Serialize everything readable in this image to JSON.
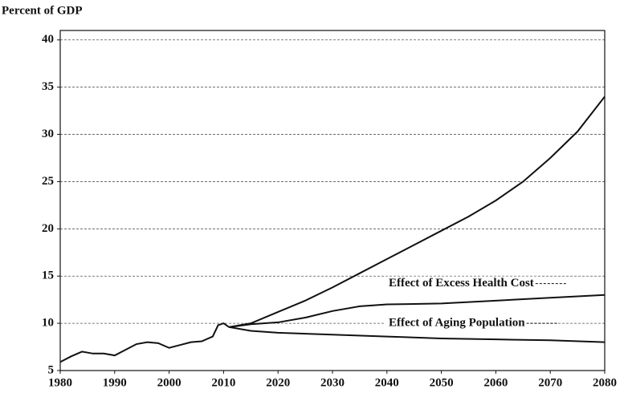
{
  "chart_data": {
    "type": "line",
    "y_label": "Percent of GDP",
    "xlim": [
      1980,
      2080
    ],
    "xticks": [
      1980,
      1990,
      2000,
      2010,
      2020,
      2030,
      2040,
      2050,
      2060,
      2070,
      2080
    ],
    "ylim": [
      5,
      41
    ],
    "yticks": [
      5,
      10,
      15,
      20,
      25,
      30,
      35,
      40
    ],
    "grid": true,
    "series": [
      {
        "color": "#111111",
        "x": [
          1980,
          1982,
          1984,
          1986,
          1988,
          1990,
          1992,
          1994,
          1996,
          1998,
          2000,
          2002,
          2004,
          2006,
          2008,
          2009,
          2010,
          2011
        ],
        "values": [
          5.9,
          6.5,
          7.0,
          6.8,
          6.8,
          6.6,
          7.2,
          7.8,
          8.0,
          7.9,
          7.4,
          7.7,
          8.0,
          8.1,
          8.6,
          9.8,
          10.0,
          9.6
        ]
      },
      {
        "color": "#111111",
        "x": [
          2011,
          2015,
          2020,
          2030,
          2040,
          2050,
          2060,
          2070,
          2080
        ],
        "values": [
          9.6,
          9.2,
          9.0,
          8.8,
          8.6,
          8.4,
          8.3,
          8.2,
          8.0
        ]
      },
      {
        "color": "#111111",
        "x": [
          2011,
          2015,
          2020,
          2025,
          2030,
          2035,
          2040,
          2050,
          2060,
          2070,
          2080
        ],
        "values": [
          9.6,
          9.9,
          10.1,
          10.6,
          11.3,
          11.8,
          12.0,
          12.1,
          12.4,
          12.7,
          13.0
        ]
      },
      {
        "color": "#111111",
        "x": [
          2011,
          2015,
          2020,
          2025,
          2030,
          2035,
          2040,
          2045,
          2050,
          2055,
          2060,
          2065,
          2070,
          2075,
          2080
        ],
        "values": [
          9.6,
          10.0,
          11.2,
          12.4,
          13.8,
          15.3,
          16.8,
          18.3,
          19.8,
          21.3,
          23.0,
          25.0,
          27.5,
          30.3,
          34.0
        ]
      }
    ],
    "annotations": [
      "Effect of Excess Health Cost",
      "Effect of Aging Population"
    ]
  }
}
